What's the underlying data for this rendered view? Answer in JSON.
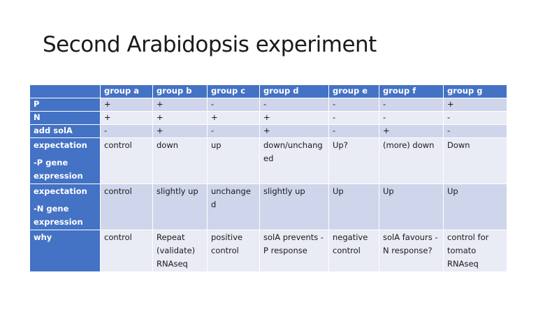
{
  "slide": {
    "title": "Second Arabidopsis experiment"
  },
  "table": {
    "headers": [
      "",
      "group a",
      "group b",
      "group c",
      "group d",
      "group e",
      "group f",
      "group g"
    ],
    "rows": [
      {
        "label": [
          "P"
        ],
        "cells": [
          "+",
          "+",
          "-",
          "-",
          "-",
          "-",
          "+"
        ]
      },
      {
        "label": [
          "N"
        ],
        "cells": [
          "+",
          "+",
          "+",
          "+",
          "-",
          "-",
          "-"
        ]
      },
      {
        "label": [
          "add solA"
        ],
        "cells": [
          "-",
          "+",
          "-",
          "+",
          "-",
          "+",
          "-"
        ]
      },
      {
        "label": [
          "expectation",
          "-P gene",
          "expression"
        ],
        "cells": [
          "control",
          "down",
          "up",
          "down/unchanged",
          "Up?",
          "(more) down",
          "Down"
        ]
      },
      {
        "label": [
          "expectation",
          "-N gene",
          "expression"
        ],
        "cells": [
          "control",
          "slightly up",
          "unchanged",
          "slightly up",
          "Up",
          "Up",
          "Up"
        ]
      },
      {
        "label": [
          "why"
        ],
        "cells": [
          "control",
          "Repeat (validate) RNAseq",
          "positive control",
          "solA prevents -P response",
          "negative control",
          "solA favours -N response?",
          "control for tomato RNAseq"
        ]
      }
    ]
  }
}
